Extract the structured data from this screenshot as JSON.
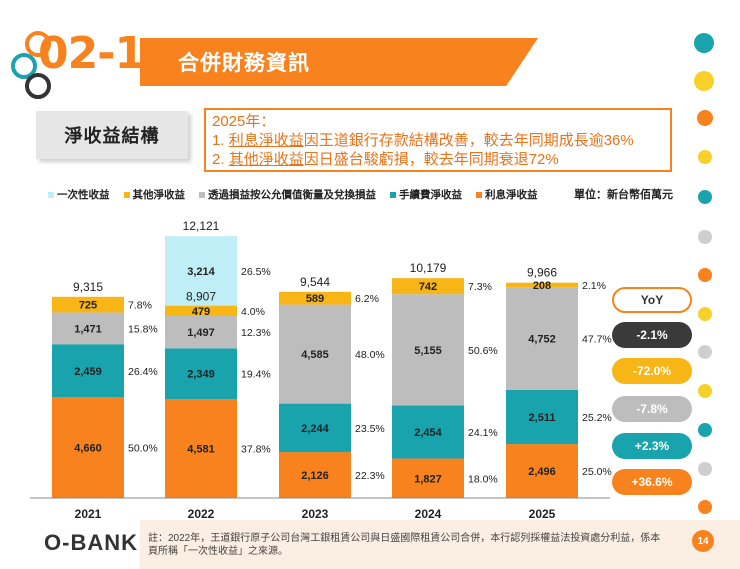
{
  "colors": {
    "orange": "#f7821e",
    "teal": "#19a3ad",
    "gray": "#bdbdbd",
    "yellow": "#f7b516",
    "lightblue": "#bfeef6",
    "dark": "#3a3a3a"
  },
  "header": {
    "section_number": "02-1",
    "title": "合併財務資訊"
  },
  "subtitle": "淨收益結構",
  "note": {
    "heading": "2025年：",
    "line1_num": "1.",
    "line1_u": "利息淨收益",
    "line1_rest": "因王道銀行存款結構改善，較去年同期成長逾36%",
    "line2_num": "2.",
    "line2_u": "其他淨收益",
    "line2_rest": "因日盛台駿虧損，較去年同期衰退72%"
  },
  "legend": [
    {
      "label": "一次性收益",
      "color": "#bfeef6"
    },
    {
      "label": "其他淨收益",
      "color": "#f7b516"
    },
    {
      "label": "透過損益按公允價值衡量及兌換損益",
      "color": "#bdbdbd"
    },
    {
      "label": "手續費淨收益",
      "color": "#19a3ad"
    },
    {
      "label": "利息淨收益",
      "color": "#f7821e"
    }
  ],
  "unit": "單位：新台幣佰萬元",
  "chart_data": {
    "type": "bar",
    "stacked": true,
    "categories": [
      "2021",
      "2022",
      "2023",
      "2024",
      "2025"
    ],
    "series": [
      {
        "name": "利息淨收益",
        "color": "#f7821e",
        "values": [
          4660,
          4581,
          2126,
          1827,
          2496
        ],
        "labels": [
          "4,660",
          "4,581",
          "2,126",
          "1,827",
          "2,496"
        ],
        "pct": [
          "50.0%",
          "37.8%",
          "22.3%",
          "18.0%",
          "25.0%"
        ]
      },
      {
        "name": "手續費淨收益",
        "color": "#19a3ad",
        "values": [
          2459,
          2349,
          2244,
          2454,
          2511
        ],
        "labels": [
          "2,459",
          "2,349",
          "2,244",
          "2,454",
          "2,511"
        ],
        "pct": [
          "26.4%",
          "19.4%",
          "23.5%",
          "24.1%",
          "25.2%"
        ]
      },
      {
        "name": "透過損益按公允價值衡量及兌換損益",
        "color": "#bdbdbd",
        "values": [
          1471,
          1497,
          4585,
          5155,
          4752
        ],
        "labels": [
          "1,471",
          "1,497",
          "4,585",
          "5,155",
          "4,752"
        ],
        "pct": [
          "15.8%",
          "12.3%",
          "48.0%",
          "50.6%",
          "47.7%"
        ]
      },
      {
        "name": "其他淨收益",
        "color": "#f7b516",
        "values": [
          725,
          479,
          589,
          742,
          208
        ],
        "labels": [
          "725",
          "479",
          "589",
          "742",
          "208"
        ],
        "pct": [
          "7.8%",
          "4.0%",
          "6.2%",
          "7.3%",
          "2.1%"
        ]
      },
      {
        "name": "一次性收益",
        "color": "#bfeef6",
        "values": [
          0,
          3214,
          0,
          0,
          0
        ],
        "labels": [
          "",
          "3,214",
          "",
          "",
          ""
        ],
        "pct": [
          "",
          "26.5%",
          "",
          "",
          ""
        ]
      }
    ],
    "totals": [
      "9,315",
      "12,121",
      "9,544",
      "10,179",
      "9,966"
    ],
    "subtotal_2022": "8,907",
    "ylim": [
      0,
      12500
    ]
  },
  "yoy": {
    "title": "YoY",
    "items": [
      {
        "value": "-2.1%",
        "bg": "#3a3a3a",
        "fg": "#ffffff"
      },
      {
        "value": "-72.0%",
        "bg": "#f7b516",
        "fg": "#ffffff"
      },
      {
        "value": "-7.8%",
        "bg": "#bdbdbd",
        "fg": "#ffffff"
      },
      {
        "value": "+2.3%",
        "bg": "#19a3ad",
        "fg": "#ffffff"
      },
      {
        "value": "+36.6%",
        "bg": "#f7821e",
        "fg": "#ffffff"
      }
    ]
  },
  "footer": {
    "logo": "O-BANK",
    "note": "註：2022年，王道銀行原子公司台灣工銀租賃公司與日盛國際租賃公司合併，本行認列採權益法投資處分利益，係本頁所稱「一次性收益」之來源。",
    "page": "14"
  }
}
